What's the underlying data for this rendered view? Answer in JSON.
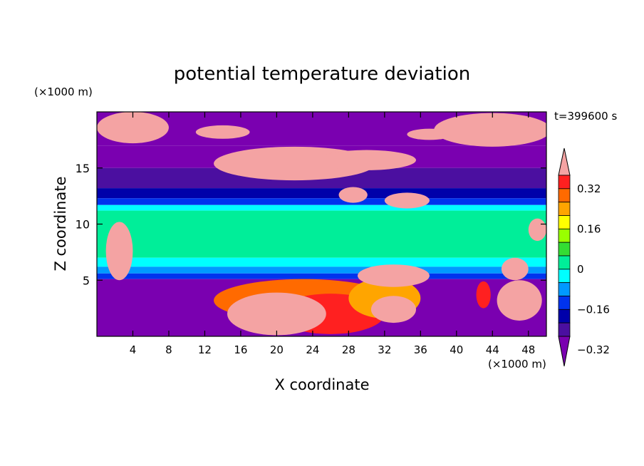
{
  "chart_data": {
    "type": "heatmap",
    "title": "potential temperature deviation",
    "xlabel": "X coordinate",
    "ylabel": "Z coordinate",
    "x_unit": "(×1000 m)",
    "y_unit": "(×1000 m)",
    "time_label": "t=399600 s",
    "xlim": [
      0,
      50
    ],
    "ylim": [
      0,
      20
    ],
    "x_ticks": [
      4,
      8,
      12,
      16,
      20,
      24,
      28,
      32,
      36,
      40,
      44,
      48
    ],
    "y_ticks": [
      5,
      10,
      15
    ],
    "colorbar": {
      "labeled_levels": [
        0.32,
        0.16,
        0,
        -0.16,
        -0.32
      ],
      "labels": [
        "0.32",
        "0.16",
        "0",
        "−0.16",
        "−0.32"
      ],
      "colors": [
        "#f4a3a3",
        "#ff2020",
        "#ff6a00",
        "#ffa500",
        "#ffff00",
        "#99ff00",
        "#33dd33",
        "#00ee99",
        "#00ffff",
        "#0099ff",
        "#0033ee",
        "#0000aa",
        "#4b0fa0",
        "#7a00b0"
      ]
    },
    "bands": [
      {
        "z0": 17,
        "z1": 20,
        "color": "#7a00b0"
      },
      {
        "z0": 15,
        "z1": 17,
        "color": "#7a00b0"
      },
      {
        "z0": 13.2,
        "z1": 15,
        "color": "#4b0fa0"
      },
      {
        "z0": 12.3,
        "z1": 13.2,
        "color": "#0000aa"
      },
      {
        "z0": 11.7,
        "z1": 12.3,
        "color": "#0033ee"
      },
      {
        "z0": 11.2,
        "z1": 11.7,
        "color": "#00ffff"
      },
      {
        "z0": 7,
        "z1": 11.2,
        "color": "#00ee99"
      },
      {
        "z0": 6.2,
        "z1": 7,
        "color": "#00ffff"
      },
      {
        "z0": 5.6,
        "z1": 6.2,
        "color": "#0099ff"
      },
      {
        "z0": 5.1,
        "z1": 5.6,
        "color": "#0033ee"
      },
      {
        "z0": 0,
        "z1": 5.1,
        "color": "#7a00b0"
      }
    ],
    "blobs": [
      {
        "x": 4,
        "z": 18.6,
        "rx": 4,
        "rz": 1.4,
        "color": "#f4a3a3"
      },
      {
        "x": 14,
        "z": 18.2,
        "rx": 3,
        "rz": 0.6,
        "color": "#f4a3a3"
      },
      {
        "x": 44,
        "z": 18.4,
        "rx": 6.5,
        "rz": 1.5,
        "color": "#f4a3a3"
      },
      {
        "x": 37,
        "z": 18.0,
        "rx": 2.5,
        "rz": 0.5,
        "color": "#f4a3a3"
      },
      {
        "x": 22,
        "z": 15.4,
        "rx": 9,
        "rz": 1.5,
        "color": "#f4a3a3"
      },
      {
        "x": 30,
        "z": 15.7,
        "rx": 5.5,
        "rz": 0.9,
        "color": "#f4a3a3"
      },
      {
        "x": 28.5,
        "z": 12.6,
        "rx": 1.6,
        "rz": 0.7,
        "color": "#f4a3a3"
      },
      {
        "x": 34.5,
        "z": 12.1,
        "rx": 2.5,
        "rz": 0.7,
        "color": "#f4a3a3"
      },
      {
        "x": 2.5,
        "z": 7.6,
        "rx": 1.5,
        "rz": 2.6,
        "color": "#f4a3a3"
      },
      {
        "x": 23,
        "z": 3.2,
        "rx": 10,
        "rz": 1.9,
        "color": "#ff6a00"
      },
      {
        "x": 26,
        "z": 2.0,
        "rx": 6,
        "rz": 1.8,
        "color": "#ff2020"
      },
      {
        "x": 20,
        "z": 2.0,
        "rx": 5.5,
        "rz": 1.9,
        "color": "#f4a3a3"
      },
      {
        "x": 32,
        "z": 3.4,
        "rx": 4,
        "rz": 1.8,
        "color": "#ffa500"
      },
      {
        "x": 33,
        "z": 2.4,
        "rx": 2.5,
        "rz": 1.2,
        "color": "#f4a3a3"
      },
      {
        "x": 33,
        "z": 5.4,
        "rx": 4,
        "rz": 1.0,
        "color": "#f4a3a3"
      },
      {
        "x": 43,
        "z": 3.7,
        "rx": 0.8,
        "rz": 1.2,
        "color": "#ff2020"
      },
      {
        "x": 47,
        "z": 3.2,
        "rx": 2.5,
        "rz": 1.8,
        "color": "#f4a3a3"
      },
      {
        "x": 46.5,
        "z": 6.0,
        "rx": 1.5,
        "rz": 1.0,
        "color": "#f4a3a3"
      },
      {
        "x": 49,
        "z": 9.5,
        "rx": 1.0,
        "rz": 1.0,
        "color": "#f4a3a3"
      }
    ]
  }
}
